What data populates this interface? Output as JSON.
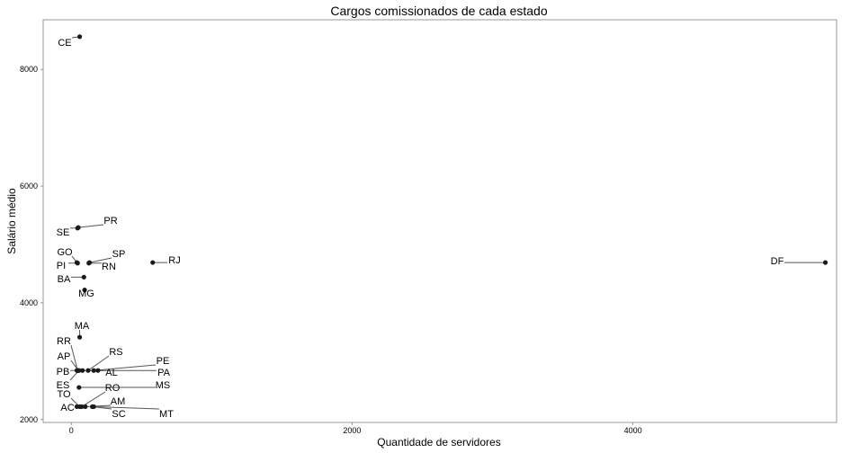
{
  "chart_data": {
    "type": "scatter",
    "title": "Cargos comissionados de cada estado",
    "xlabel": "Quantidade de servidores",
    "ylabel": "Salário médio",
    "xlim": [
      -200,
      5450
    ],
    "ylim": [
      1950,
      8850
    ],
    "xticks": [
      0,
      2000,
      4000
    ],
    "xtick_labels": [
      "0",
      "2000",
      "4000"
    ],
    "yticks": [
      2000,
      4000,
      6000,
      8000
    ],
    "ytick_labels": [
      "2000",
      "4000",
      "6000",
      "8000"
    ],
    "grid": false,
    "points": [
      {
        "label": "CE",
        "x": 60,
        "y": 8560
      },
      {
        "label": "PR",
        "x": 50,
        "y": 5290
      },
      {
        "label": "SE",
        "x": 45,
        "y": 5280
      },
      {
        "label": "GO",
        "x": 40,
        "y": 4690
      },
      {
        "label": "PI",
        "x": 45,
        "y": 4680
      },
      {
        "label": "SP",
        "x": 130,
        "y": 4690
      },
      {
        "label": "RN",
        "x": 125,
        "y": 4680
      },
      {
        "label": "RJ",
        "x": 580,
        "y": 4690
      },
      {
        "label": "DF",
        "x": 5370,
        "y": 4690
      },
      {
        "label": "BA",
        "x": 90,
        "y": 4440
      },
      {
        "label": "MG",
        "x": 95,
        "y": 4220
      },
      {
        "label": "MA",
        "x": 60,
        "y": 3410
      },
      {
        "label": "RR",
        "x": 45,
        "y": 2840
      },
      {
        "label": "AP",
        "x": 50,
        "y": 2840
      },
      {
        "label": "RS",
        "x": 120,
        "y": 2840
      },
      {
        "label": "PE",
        "x": 160,
        "y": 2840
      },
      {
        "label": "PA",
        "x": 190,
        "y": 2840
      },
      {
        "label": "PB",
        "x": 40,
        "y": 2840
      },
      {
        "label": "AL",
        "x": 80,
        "y": 2840
      },
      {
        "label": "ES",
        "x": 55,
        "y": 2840
      },
      {
        "label": "MS",
        "x": 55,
        "y": 2550
      },
      {
        "label": "TO",
        "x": 60,
        "y": 2220
      },
      {
        "label": "RO",
        "x": 75,
        "y": 2220
      },
      {
        "label": "AC",
        "x": 40,
        "y": 2220
      },
      {
        "label": "AM",
        "x": 100,
        "y": 2220
      },
      {
        "label": "SC",
        "x": 150,
        "y": 2220
      },
      {
        "label": "MT",
        "x": 160,
        "y": 2220
      }
    ]
  }
}
